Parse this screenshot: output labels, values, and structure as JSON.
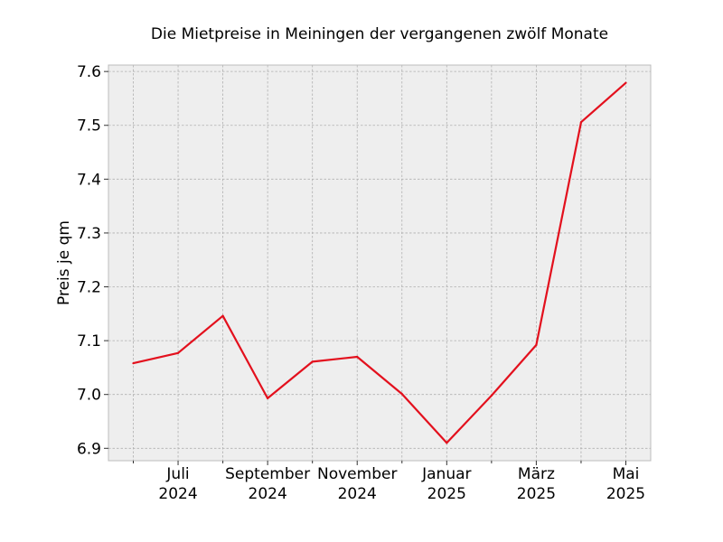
{
  "chart_data": {
    "type": "line",
    "title": "Die Mietpreise in Meiningen der vergangenen zwölf Monate",
    "xlabel": "",
    "ylabel": "Preis je qm",
    "x": [
      "2024-06",
      "2024-07",
      "2024-08",
      "2024-09",
      "2024-10",
      "2024-11",
      "2024-12",
      "2025-01",
      "2025-02",
      "2025-03",
      "2025-04",
      "2025-05"
    ],
    "x_ticks": [
      {
        "x": "2024-07",
        "label": [
          "Juli",
          "2024"
        ]
      },
      {
        "x": "2024-09",
        "label": [
          "September",
          "2024"
        ]
      },
      {
        "x": "2024-11",
        "label": [
          "November",
          "2024"
        ]
      },
      {
        "x": "2025-01",
        "label": [
          "Januar",
          "2025"
        ]
      },
      {
        "x": "2025-03",
        "label": [
          "März",
          "2025"
        ]
      },
      {
        "x": "2025-05",
        "label": [
          "Mai",
          "2025"
        ]
      }
    ],
    "series": [
      {
        "values": [
          7.058,
          7.077,
          7.146,
          6.993,
          7.061,
          7.07,
          7.001,
          6.91,
          6.998,
          7.092,
          7.506,
          7.579
        ],
        "color": "#e3101d"
      }
    ],
    "ylim": [
      6.877,
      7.612
    ],
    "y_ticks": [
      "6.9",
      "7.0",
      "7.1",
      "7.2",
      "7.3",
      "7.4",
      "7.5",
      "7.6"
    ],
    "grid": true,
    "legend": "none",
    "plot_background": "#eeeeee"
  }
}
